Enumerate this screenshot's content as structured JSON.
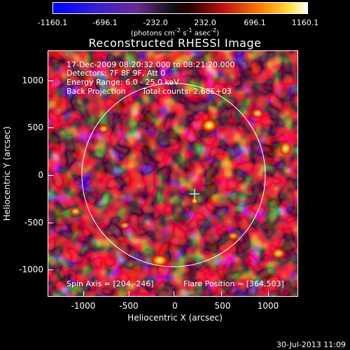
{
  "colorbar": {
    "ticks": [
      "-1160.1",
      "-696.1",
      "-232.0",
      "232.0",
      "696.1",
      "1160.1"
    ],
    "unit_html": "(photons cm<sup>-2</sup> s<sup>-1</sup> asec<sup>-2</sup>)"
  },
  "title": "Reconstructed RHESSI Image",
  "info": {
    "time": "17-Dec-2009 08:20:32.000 to 08:21:20.000",
    "detectors": "Detectors: 7F 8F 9F, Att 0",
    "energy": "Energy Range: 6.0 - 25.0 keV",
    "method": "Back Projection",
    "counts": "Total counts: 2.68E+03",
    "spin_axis": "Spin Axis = [204,-246]",
    "flare_position": "Flare Position = [364,503]"
  },
  "axes": {
    "xlabel": "Heliocentric X (arcsec)",
    "ylabel": "Heliocentric Y (arcsec)",
    "x_ticks": [
      "-1000",
      "-500",
      "0",
      "500",
      "1000"
    ],
    "y_ticks": [
      "1000",
      "500",
      "0",
      "-500",
      "-1000"
    ],
    "xlim": [
      -1300,
      1300
    ],
    "ylim": [
      -1300,
      1300
    ]
  },
  "date_stamp": "30-Jul-2013 11:09",
  "colors": {
    "solar_limb": "#ffffff",
    "background": "#000000"
  }
}
